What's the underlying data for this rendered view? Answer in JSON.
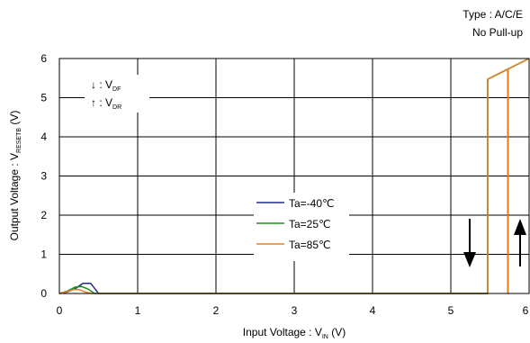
{
  "header": {
    "type_note": "Type : A/C/E",
    "pullup_note": "No Pull-up"
  },
  "chart_data": {
    "type": "line",
    "xlabel": {
      "main": "Input Voltage : V",
      "sub": "IN",
      "unit": " (V)"
    },
    "ylabel": {
      "main": "Output Voltage : V",
      "sub": "RESETB",
      "unit": " (V)"
    },
    "xlim": [
      0,
      6
    ],
    "ylim": [
      0,
      6
    ],
    "xticks": [
      "0",
      "1",
      "2",
      "3",
      "4",
      "5",
      "6"
    ],
    "yticks": [
      "0",
      "1",
      "2",
      "3",
      "4",
      "5",
      "6"
    ],
    "grid": true,
    "direction_legend": [
      {
        "arrow": "↓",
        "text": " : V",
        "sub": "DF"
      },
      {
        "arrow": "↑",
        "text": " : V",
        "sub": "DR"
      }
    ],
    "series": [
      {
        "name": "Ta=-40℃",
        "color": "#1f2f8f",
        "points": [
          [
            0,
            0
          ],
          [
            0.1,
            0.04
          ],
          [
            0.2,
            0.12
          ],
          [
            0.3,
            0.26
          ],
          [
            0.4,
            0.26
          ],
          [
            0.5,
            0
          ],
          [
            5.47,
            0
          ],
          [
            5.47,
            5.47
          ],
          [
            5.73,
            5.73
          ],
          [
            5.73,
            0
          ],
          [
            5.73,
            5.73
          ],
          [
            6,
            6
          ]
        ]
      },
      {
        "name": "Ta=25℃",
        "color": "#1a8f1a",
        "points": [
          [
            0,
            0
          ],
          [
            0.1,
            0.06
          ],
          [
            0.2,
            0.16
          ],
          [
            0.28,
            0.18
          ],
          [
            0.36,
            0.12
          ],
          [
            0.45,
            0
          ],
          [
            5.47,
            0
          ],
          [
            5.47,
            5.47
          ],
          [
            5.73,
            5.73
          ],
          [
            5.73,
            0
          ],
          [
            5.73,
            5.73
          ],
          [
            6,
            6
          ]
        ]
      },
      {
        "name": "Ta=85℃",
        "color": "#e8801a",
        "points": [
          [
            0,
            0
          ],
          [
            0.1,
            0.05
          ],
          [
            0.18,
            0.1
          ],
          [
            0.25,
            0.1
          ],
          [
            0.33,
            0.04
          ],
          [
            0.4,
            0
          ],
          [
            5.47,
            0
          ],
          [
            5.47,
            5.47
          ],
          [
            5.73,
            5.73
          ],
          [
            5.73,
            0
          ],
          [
            5.73,
            5.73
          ],
          [
            6,
            6
          ]
        ]
      }
    ]
  }
}
